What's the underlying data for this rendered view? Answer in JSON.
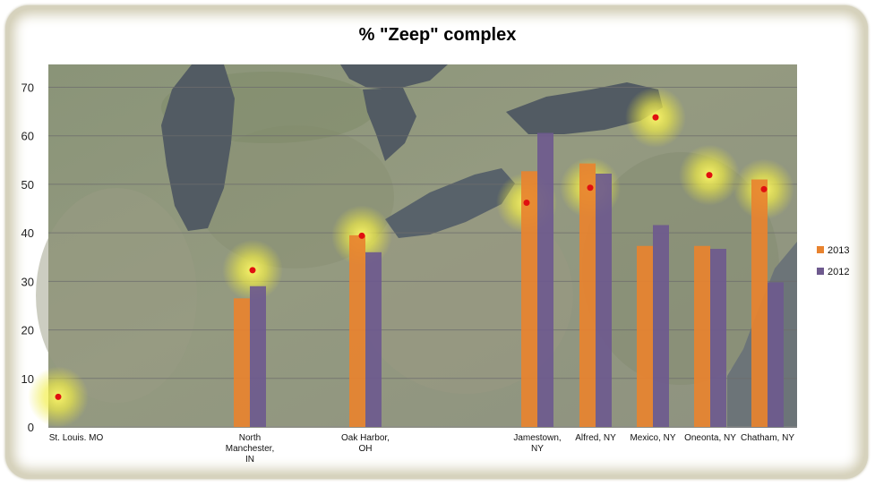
{
  "chart_data": {
    "type": "bar",
    "title": "% \"Zeep\" complex",
    "categories": [
      "St. Louis. MO",
      "North Manchester, IN",
      "Oak Harbor, OH",
      "Jamestown, NY",
      "Alfred, NY",
      "Mexico, NY",
      "Oneonta, NY",
      "Chatham, NY"
    ],
    "category_lines": [
      [
        "St. Louis. MO"
      ],
      [
        "North",
        "Manchester,",
        "IN"
      ],
      [
        "Oak Harbor,",
        "OH"
      ],
      [
        "Jamestown,",
        "NY"
      ],
      [
        "Alfred, NY"
      ],
      [
        "Mexico, NY"
      ],
      [
        "Oneonta, NY"
      ],
      [
        "Chatham, NY"
      ]
    ],
    "series": [
      {
        "name": "2013",
        "color": "#e8832f",
        "values": [
          null,
          26.5,
          39.5,
          52.7,
          54.3,
          37.3,
          37.3,
          51.0
        ]
      },
      {
        "name": "2012",
        "color": "#6e5a8e",
        "values": [
          null,
          29.0,
          36.0,
          60.6,
          52.2,
          41.6,
          36.7,
          29.8
        ]
      }
    ],
    "overlay_points": [
      6.2,
      32.3,
      39.4,
      46.2,
      49.3,
      63.8,
      51.9,
      49.0
    ],
    "overlay_point_color": "#e01010",
    "xlabel": "",
    "ylabel": "",
    "ylim": [
      0,
      70
    ],
    "yticks": [
      0,
      10,
      20,
      30,
      40,
      50,
      60,
      70
    ],
    "grid": true,
    "legend_position": "right",
    "background": "satellite map of the Great Lakes region"
  }
}
